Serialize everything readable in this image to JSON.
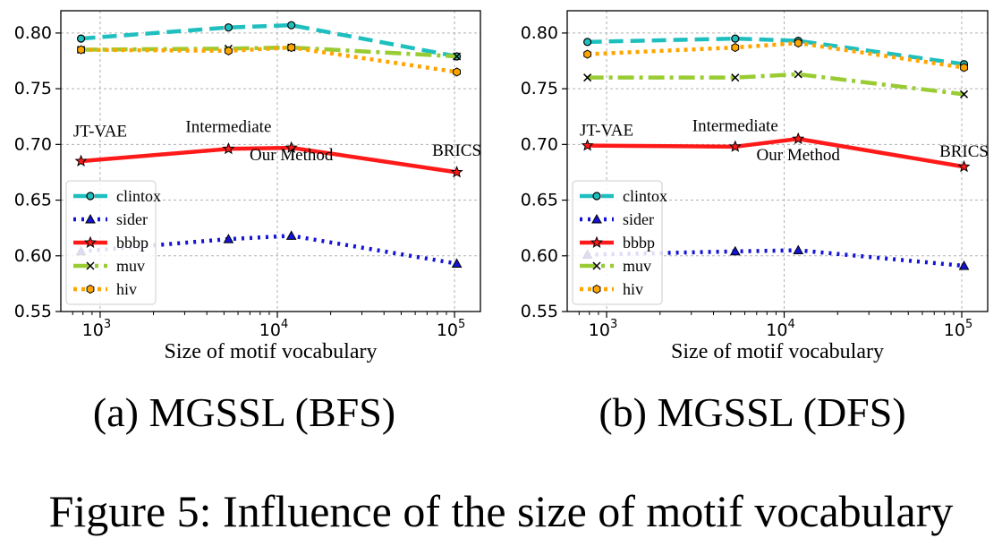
{
  "figure_caption": "Figure 5: Influence of the size of motif vocabulary",
  "colors": {
    "clintox": "#1fbfbf",
    "sider": "#1414d6",
    "bbbp": "#ff1a1a",
    "muv": "#99cc33",
    "hiv": "#ffa500"
  },
  "chart_data": [
    {
      "type": "line",
      "subcaption": "(a) MGSSL (BFS)",
      "xlabel": "Size of motif vocabulary",
      "ylabel": "",
      "xscale": "log",
      "xlim": [
        600,
        140000
      ],
      "ylim": [
        0.55,
        0.82
      ],
      "yticks": [
        "0.55",
        "0.60",
        "0.65",
        "0.70",
        "0.75",
        "0.80"
      ],
      "xticks": [
        {
          "value": 1000,
          "base": "10",
          "exp": "3"
        },
        {
          "value": 10000,
          "base": "10",
          "exp": "4"
        },
        {
          "value": 100000,
          "base": "10",
          "exp": "5"
        }
      ],
      "grid": true,
      "legend_position": "lower-left",
      "x": [
        780,
        5300,
        12000,
        103000
      ],
      "series": [
        {
          "name": "clintox",
          "values": [
            0.795,
            0.805,
            0.807,
            0.779
          ]
        },
        {
          "name": "sider",
          "values": [
            0.604,
            0.615,
            0.618,
            0.593
          ]
        },
        {
          "name": "bbbp",
          "values": [
            0.685,
            0.696,
            0.697,
            0.675
          ]
        },
        {
          "name": "muv",
          "values": [
            0.785,
            0.786,
            0.787,
            0.779
          ]
        },
        {
          "name": "hiv",
          "values": [
            0.785,
            0.784,
            0.787,
            0.765
          ]
        }
      ],
      "annotations": [
        {
          "text": "JT-VAE",
          "x": 1000,
          "y": 0.707,
          "anchor": "middle"
        },
        {
          "text": "Intermediate",
          "x": 5300,
          "y": 0.711,
          "anchor": "middle"
        },
        {
          "text": "Our Method",
          "x": 12000,
          "y": 0.686,
          "anchor": "middle"
        },
        {
          "text": "BRICS",
          "x": 103000,
          "y": 0.69,
          "anchor": "middle"
        }
      ]
    },
    {
      "type": "line",
      "subcaption": "(b) MGSSL (DFS)",
      "xlabel": "Size of motif vocabulary",
      "ylabel": "",
      "xscale": "log",
      "xlim": [
        600,
        140000
      ],
      "ylim": [
        0.55,
        0.82
      ],
      "yticks": [
        "0.55",
        "0.60",
        "0.65",
        "0.70",
        "0.75",
        "0.80"
      ],
      "xticks": [
        {
          "value": 1000,
          "base": "10",
          "exp": "3"
        },
        {
          "value": 10000,
          "base": "10",
          "exp": "4"
        },
        {
          "value": 100000,
          "base": "10",
          "exp": "5"
        }
      ],
      "grid": true,
      "legend_position": "lower-left",
      "x": [
        780,
        5300,
        12000,
        103000
      ],
      "series": [
        {
          "name": "clintox",
          "values": [
            0.792,
            0.795,
            0.793,
            0.772
          ]
        },
        {
          "name": "sider",
          "values": [
            0.601,
            0.604,
            0.605,
            0.591
          ]
        },
        {
          "name": "bbbp",
          "values": [
            0.699,
            0.698,
            0.705,
            0.68
          ]
        },
        {
          "name": "muv",
          "values": [
            0.76,
            0.76,
            0.763,
            0.745
          ]
        },
        {
          "name": "hiv",
          "values": [
            0.781,
            0.787,
            0.791,
            0.769
          ]
        }
      ],
      "annotations": [
        {
          "text": "JT-VAE",
          "x": 1000,
          "y": 0.708,
          "anchor": "middle"
        },
        {
          "text": "Intermediate",
          "x": 5300,
          "y": 0.712,
          "anchor": "middle"
        },
        {
          "text": "Our Method",
          "x": 12000,
          "y": 0.686,
          "anchor": "middle"
        },
        {
          "text": "BRICS",
          "x": 103000,
          "y": 0.689,
          "anchor": "middle"
        }
      ]
    }
  ]
}
